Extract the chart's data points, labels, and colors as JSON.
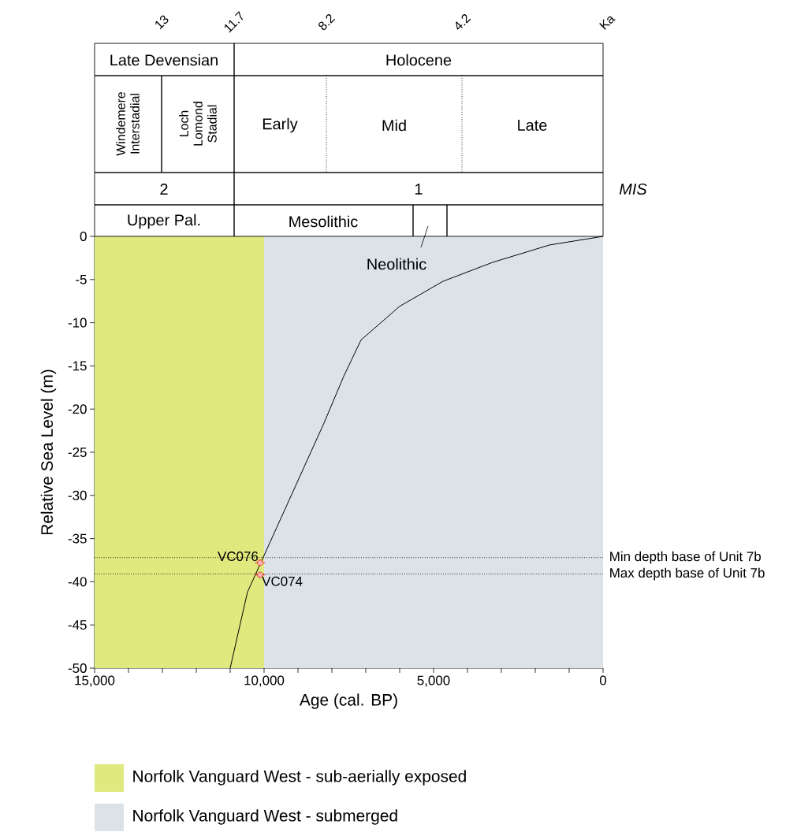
{
  "chart_data": {
    "type": "line",
    "xlabel": "Age (cal. BP)",
    "ylabel": "Relative Sea Level (m)",
    "xlim": [
      15000,
      0
    ],
    "xticks": [
      {
        "value": 15000,
        "label": "15,000"
      },
      {
        "value": 14000,
        "label": null
      },
      {
        "value": 13000,
        "label": null
      },
      {
        "value": 12000,
        "label": null
      },
      {
        "value": 11000,
        "label": null
      },
      {
        "value": 10000,
        "label": "10,000"
      },
      {
        "value": 9000,
        "label": null
      },
      {
        "value": 8000,
        "label": null
      },
      {
        "value": 7000,
        "label": null
      },
      {
        "value": 6000,
        "label": null
      },
      {
        "value": 5000,
        "label": "5,000"
      },
      {
        "value": 4000,
        "label": null
      },
      {
        "value": 3000,
        "label": null
      },
      {
        "value": 2000,
        "label": null
      },
      {
        "value": 1000,
        "label": null
      },
      0
    ],
    "ylim": [
      -50,
      0
    ],
    "yticks": [
      0,
      -5,
      -10,
      -15,
      -20,
      -25,
      -30,
      -35,
      -40,
      -45,
      -50
    ],
    "series": [
      {
        "type": "line",
        "color": "#000000",
        "marker": "none",
        "line_style": "solid",
        "x": [
          0,
          1580,
          3250,
          4720,
          6000,
          7140,
          7650,
          8230,
          10490,
          11000
        ],
        "values": [
          0,
          -1,
          -3,
          -5.2,
          -8.1,
          -12,
          -16.2,
          -21.6,
          -41.2,
          -50
        ]
      },
      {
        "type": "scatter",
        "color": "#e8262a",
        "marker": "circle",
        "x": [
          10116,
          10116
        ],
        "values": [
          -37.8,
          -39.2
        ],
        "xerrors": [
          150,
          150
        ]
      }
    ],
    "ref_lines": [
      {
        "axis": "y",
        "value": -37.2,
        "label": "Min depth base of Unit 7b",
        "line_style": "dotted",
        "color": "#000000"
      },
      {
        "axis": "y",
        "value": -39.1,
        "label": "Max depth base of Unit 7b",
        "line_style": "dotted",
        "color": "#000000"
      }
    ],
    "bands": [
      {
        "axis": "x",
        "from": 15000,
        "to": 10000,
        "label": "Norfolk Vanguard West - sub-aerially exposed",
        "color": "#dfe97e"
      },
      {
        "axis": "x",
        "from": 10000,
        "to": 0,
        "label": "Norfolk Vanguard West - submerged",
        "color": "#dce3e8"
      }
    ],
    "legend": "bottom",
    "annotations": [
      {
        "text": "VC076",
        "x": 10116,
        "y": -37.8
      },
      {
        "text": "VC074",
        "x": 10116,
        "y": -39.2
      },
      "13",
      "11.7",
      "8.2",
      "4.2",
      "Ka",
      "Late Devensian",
      "Holocene",
      "Windemere Interstadial",
      "Loch Lomond Stadial",
      "Early",
      "Mid",
      "Late",
      "2",
      "1",
      "*MIS*",
      "Upper Pal.",
      "Mesolithic",
      "Neolithic"
    ]
  }
}
